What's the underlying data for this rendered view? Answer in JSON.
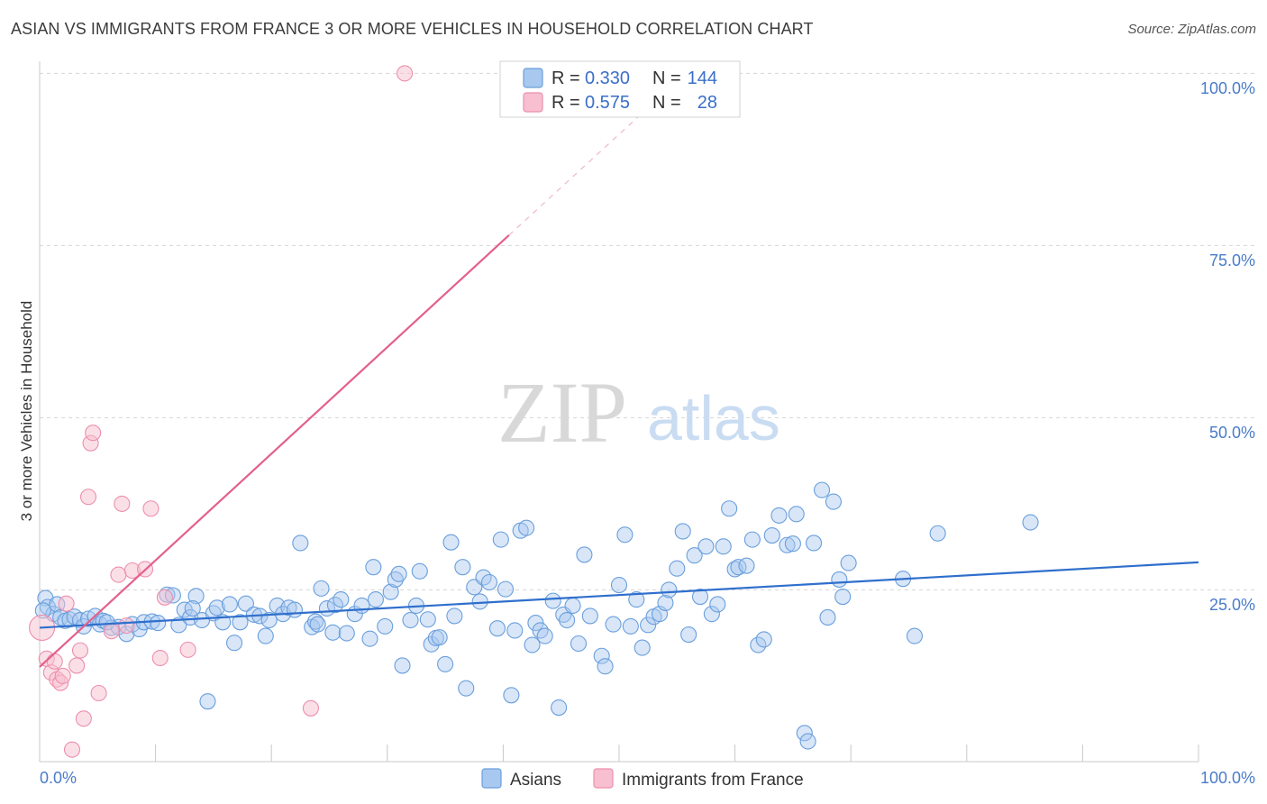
{
  "header": {
    "title": "ASIAN VS IMMIGRANTS FROM FRANCE 3 OR MORE VEHICLES IN HOUSEHOLD CORRELATION CHART",
    "source": "Source: ZipAtlas.com"
  },
  "watermark": {
    "zip": "ZIP",
    "atlas": "atlas"
  },
  "legend_top": {
    "rows": [
      {
        "r_label": "R = ",
        "r_value": "0.330",
        "n_label": "N = ",
        "n_value": "144"
      },
      {
        "r_label": "R = ",
        "r_value": "0.575",
        "n_label": "N = ",
        "n_value": "28"
      }
    ]
  },
  "colors": {
    "asian_fill": "#a9c8ef",
    "asian_stroke": "#6a9fdc",
    "asian_line": "#2f6fcc",
    "france_fill": "#f7bfd0",
    "france_stroke": "#ec8fae",
    "france_line": "#e3608c",
    "grid": "#d5d5d5",
    "tick_text": "#4a7cc9"
  },
  "chart_data": {
    "type": "scatter",
    "title": "ASIAN VS IMMIGRANTS FROM FRANCE 3 OR MORE VEHICLES IN HOUSEHOLD CORRELATION CHART",
    "xlabel": "",
    "ylabel": "3 or more Vehicles in Household",
    "xlim": [
      0,
      100
    ],
    "ylim": [
      0,
      104
    ],
    "x_tick_labels": [
      "0.0%",
      "100.0%"
    ],
    "y_tick_labels": [
      "25.0%",
      "50.0%",
      "75.0%",
      "100.0%"
    ],
    "y_ticks": [
      25,
      50,
      75,
      100
    ],
    "grid": "horizontal dashed",
    "legend_placement": "top-center and bottom",
    "series": [
      {
        "name": "Asians",
        "r": 0.33,
        "n": 144,
        "trend": {
          "x": [
            0,
            100
          ],
          "y": [
            19.5,
            29.0
          ]
        },
        "points": [
          [
            0.5,
            23.8
          ],
          [
            0.7,
            22.5
          ],
          [
            1.2,
            21.5
          ],
          [
            1.5,
            22.9
          ],
          [
            1.8,
            21.0
          ],
          [
            2.2,
            20.5
          ],
          [
            2.6,
            20.7
          ],
          [
            3.0,
            21.1
          ],
          [
            3.5,
            20.6
          ],
          [
            3.8,
            19.7
          ],
          [
            4.2,
            20.8
          ],
          [
            4.8,
            21.2
          ],
          [
            5.2,
            20.0
          ],
          [
            5.5,
            20.5
          ],
          [
            6.2,
            19.5
          ],
          [
            6.8,
            19.6
          ],
          [
            7.5,
            18.6
          ],
          [
            8.0,
            20.0
          ],
          [
            8.6,
            19.3
          ],
          [
            9.0,
            20.3
          ],
          [
            9.7,
            20.4
          ],
          [
            10.2,
            20.2
          ],
          [
            11.0,
            24.3
          ],
          [
            11.5,
            24.2
          ],
          [
            12.0,
            19.9
          ],
          [
            12.5,
            22.1
          ],
          [
            13.0,
            21.0
          ],
          [
            13.5,
            24.1
          ],
          [
            14.0,
            20.6
          ],
          [
            14.5,
            8.8
          ],
          [
            15.0,
            21.6
          ],
          [
            15.3,
            22.4
          ],
          [
            15.8,
            20.3
          ],
          [
            16.4,
            22.9
          ],
          [
            16.8,
            17.3
          ],
          [
            17.3,
            20.3
          ],
          [
            17.8,
            23.0
          ],
          [
            18.5,
            21.4
          ],
          [
            19.0,
            21.2
          ],
          [
            19.5,
            18.3
          ],
          [
            19.8,
            20.6
          ],
          [
            20.5,
            22.7
          ],
          [
            21.0,
            21.5
          ],
          [
            21.5,
            22.4
          ],
          [
            22.0,
            22.1
          ],
          [
            22.5,
            31.8
          ],
          [
            23.5,
            19.6
          ],
          [
            23.8,
            20.4
          ],
          [
            24.0,
            20.0
          ],
          [
            24.3,
            25.2
          ],
          [
            24.8,
            22.3
          ],
          [
            25.3,
            18.8
          ],
          [
            25.5,
            22.8
          ],
          [
            26.0,
            23.6
          ],
          [
            26.5,
            18.7
          ],
          [
            27.2,
            21.5
          ],
          [
            27.8,
            22.7
          ],
          [
            28.5,
            17.9
          ],
          [
            28.8,
            28.3
          ],
          [
            29.0,
            23.6
          ],
          [
            29.8,
            19.7
          ],
          [
            30.3,
            24.7
          ],
          [
            30.7,
            26.5
          ],
          [
            31.0,
            27.3
          ],
          [
            31.3,
            14.0
          ],
          [
            32.0,
            20.6
          ],
          [
            32.5,
            22.7
          ],
          [
            32.8,
            27.7
          ],
          [
            33.5,
            20.7
          ],
          [
            33.8,
            17.1
          ],
          [
            34.2,
            18.0
          ],
          [
            34.5,
            18.1
          ],
          [
            35.0,
            14.2
          ],
          [
            35.5,
            31.9
          ],
          [
            35.8,
            21.2
          ],
          [
            36.5,
            28.3
          ],
          [
            36.8,
            10.7
          ],
          [
            37.5,
            25.4
          ],
          [
            38.0,
            23.3
          ],
          [
            38.3,
            26.8
          ],
          [
            38.8,
            26.1
          ],
          [
            39.5,
            19.4
          ],
          [
            39.8,
            32.3
          ],
          [
            40.2,
            25.1
          ],
          [
            40.7,
            9.7
          ],
          [
            41.0,
            19.1
          ],
          [
            41.5,
            33.6
          ],
          [
            42.0,
            34.0
          ],
          [
            42.5,
            17.0
          ],
          [
            42.8,
            20.2
          ],
          [
            43.2,
            19.1
          ],
          [
            43.6,
            18.3
          ],
          [
            44.3,
            23.4
          ],
          [
            44.8,
            7.9
          ],
          [
            45.2,
            21.4
          ],
          [
            45.5,
            20.6
          ],
          [
            46.0,
            22.7
          ],
          [
            46.5,
            17.2
          ],
          [
            47.0,
            30.1
          ],
          [
            47.5,
            21.2
          ],
          [
            48.5,
            15.4
          ],
          [
            48.8,
            13.9
          ],
          [
            49.5,
            20.0
          ],
          [
            50.0,
            25.7
          ],
          [
            50.5,
            33.0
          ],
          [
            51.0,
            19.7
          ],
          [
            51.5,
            23.6
          ],
          [
            52.0,
            16.6
          ],
          [
            52.5,
            19.9
          ],
          [
            53.0,
            21.1
          ],
          [
            53.5,
            21.5
          ],
          [
            54.0,
            23.1
          ],
          [
            54.3,
            25.0
          ],
          [
            55.0,
            28.1
          ],
          [
            55.5,
            33.5
          ],
          [
            56.0,
            18.5
          ],
          [
            56.5,
            30.0
          ],
          [
            57.0,
            24.0
          ],
          [
            57.5,
            31.3
          ],
          [
            58.0,
            21.5
          ],
          [
            58.5,
            22.9
          ],
          [
            59.0,
            31.3
          ],
          [
            59.5,
            36.8
          ],
          [
            60.0,
            28.0
          ],
          [
            60.3,
            28.3
          ],
          [
            61.0,
            28.5
          ],
          [
            61.5,
            32.3
          ],
          [
            62.0,
            17.0
          ],
          [
            62.5,
            17.8
          ],
          [
            63.2,
            32.9
          ],
          [
            63.8,
            35.8
          ],
          [
            64.5,
            31.5
          ],
          [
            65.0,
            31.7
          ],
          [
            65.3,
            36.0
          ],
          [
            66.0,
            4.2
          ],
          [
            66.3,
            3.0
          ],
          [
            66.8,
            31.8
          ],
          [
            67.5,
            39.5
          ],
          [
            68.0,
            21.0
          ],
          [
            68.5,
            37.8
          ],
          [
            69.0,
            26.5
          ],
          [
            69.3,
            24.0
          ],
          [
            69.8,
            28.9
          ],
          [
            74.5,
            26.6
          ],
          [
            75.5,
            18.3
          ],
          [
            77.5,
            33.2
          ],
          [
            85.5,
            34.8
          ],
          [
            0.3,
            22.0
          ],
          [
            5.8,
            20.3
          ],
          [
            13.2,
            22.3
          ]
        ]
      },
      {
        "name": "Immigrants from France",
        "r": 0.575,
        "n": 28,
        "trend": {
          "x": [
            0,
            40.5
          ],
          "y": [
            13.8,
            76.5
          ]
        },
        "trend_dashed": {
          "x": [
            40.5,
            52.5
          ],
          "y": [
            76.5,
            95.0
          ]
        },
        "points": [
          [
            0.2,
            19.5
          ],
          [
            0.6,
            15.0
          ],
          [
            1.0,
            13.0
          ],
          [
            1.5,
            12.0
          ],
          [
            1.8,
            11.5
          ],
          [
            2.0,
            12.5
          ],
          [
            2.3,
            23.0
          ],
          [
            2.8,
            1.8
          ],
          [
            3.2,
            14.0
          ],
          [
            3.5,
            16.2
          ],
          [
            3.8,
            6.3
          ],
          [
            4.2,
            38.5
          ],
          [
            4.4,
            46.3
          ],
          [
            4.6,
            47.8
          ],
          [
            5.1,
            10.0
          ],
          [
            6.8,
            27.2
          ],
          [
            7.1,
            37.5
          ],
          [
            7.5,
            19.8
          ],
          [
            8.0,
            27.8
          ],
          [
            9.1,
            28.0
          ],
          [
            9.6,
            36.8
          ],
          [
            10.4,
            15.1
          ],
          [
            10.8,
            23.9
          ],
          [
            12.8,
            16.3
          ],
          [
            23.4,
            7.8
          ],
          [
            31.5,
            100.0
          ],
          [
            1.3,
            14.6
          ],
          [
            6.2,
            19.0
          ]
        ]
      }
    ]
  },
  "bottom_legend": {
    "items": [
      "Asians",
      "Immigrants from France"
    ]
  }
}
